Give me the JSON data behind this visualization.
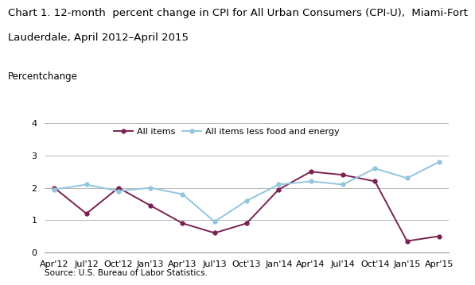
{
  "title_line1": "Chart 1. 12-month  percent change in CPI for All Urban Consumers (CPI-U),  Miami-Fort",
  "title_line2": "Lauderdale, April 2012–April 2015",
  "ylabel": "Percentchange",
  "source": "Source: U.S. Bureau of Labor Statistics.",
  "x_labels": [
    "Apr'12",
    "Jul'12",
    "Oct'12",
    "Jan'13",
    "Apr'13",
    "Jul'13",
    "Oct'13",
    "Jan'14",
    "Apr'14",
    "Jul'14",
    "Oct'14",
    "Jan'15",
    "Apr'15"
  ],
  "all_items": [
    2.0,
    1.2,
    2.0,
    1.45,
    0.9,
    0.6,
    0.9,
    1.95,
    2.5,
    2.4,
    2.2,
    0.35,
    0.5
  ],
  "all_items_less": [
    1.95,
    2.1,
    1.9,
    2.0,
    1.8,
    0.95,
    1.6,
    2.1,
    2.2,
    2.1,
    2.6,
    2.3,
    2.8
  ],
  "all_items_color": "#7B2151",
  "all_items_less_color": "#92C5DE",
  "ylim": [
    0,
    4
  ],
  "yticks": [
    0,
    1,
    2,
    3,
    4
  ],
  "title_fontsize": 9.5,
  "ylabel_fontsize": 8.5,
  "tick_fontsize": 8,
  "source_fontsize": 7.5,
  "legend_fontsize": 8
}
